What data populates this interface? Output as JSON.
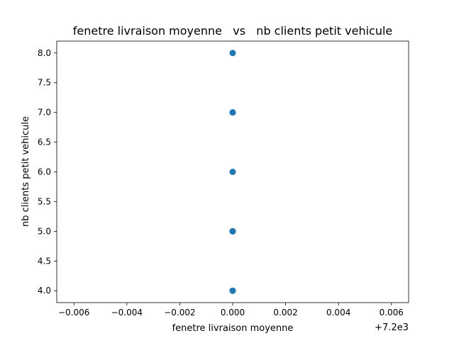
{
  "chart_data": {
    "type": "scatter",
    "title": "fenetre livraison moyenne   vs   nb clients petit vehicule",
    "xlabel": "fenetre livraison moyenne",
    "ylabel": "nb clients petit vehicule",
    "x_offset_label": "+7.2e3",
    "xlim": [
      7199.99335,
      7200.00665
    ],
    "ylim": [
      3.8,
      8.2
    ],
    "x_ticks": [
      7199.994,
      7199.996,
      7199.998,
      7200.0,
      7200.002,
      7200.004,
      7200.006
    ],
    "x_tick_labels": [
      "−0.006",
      "−0.004",
      "−0.002",
      "0.000",
      "0.002",
      "0.004",
      "0.006"
    ],
    "y_ticks": [
      4.0,
      4.5,
      5.0,
      5.5,
      6.0,
      6.5,
      7.0,
      7.5,
      8.0
    ],
    "y_tick_labels": [
      "4.0",
      "4.5",
      "5.0",
      "5.5",
      "6.0",
      "6.5",
      "7.0",
      "7.5",
      "8.0"
    ],
    "grid": false,
    "marker_color": "#1f77b4",
    "series": [
      {
        "x": [
          7200,
          7200,
          7200,
          7200,
          7200,
          7200,
          7200,
          7200,
          7200
        ],
        "y": [
          8,
          7,
          7,
          6,
          5,
          5,
          5,
          4,
          4
        ]
      }
    ]
  }
}
